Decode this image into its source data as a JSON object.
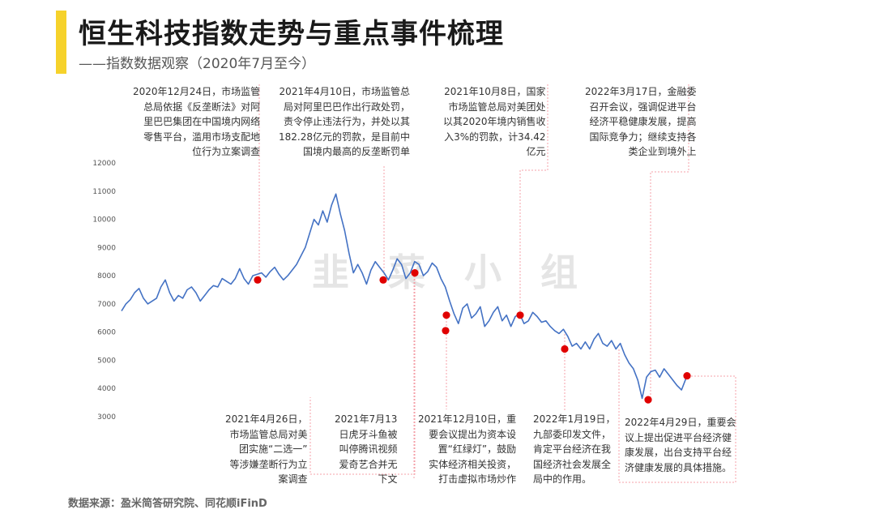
{
  "title": "恒生科技指数走势与重点事件梳理",
  "subtitle": "——指数数据观察（2020年7月至今）",
  "source": "数据来源：盈米简答研究院、同花顺iFinD",
  "watermark": "韭 菜 小 组",
  "colors": {
    "line": "#4472c4",
    "event": "#e00000",
    "guide": "#f4a0a8",
    "accent": "#f6d22b"
  },
  "chart_data": {
    "type": "line",
    "title": "恒生科技指数走势与重点事件梳理",
    "ylim": [
      3000,
      12000
    ],
    "yticks": [
      12000,
      11000,
      10000,
      9000,
      8000,
      7000,
      6000,
      5000,
      4000,
      3000
    ],
    "x_range": [
      "2020-07",
      "2022-06"
    ],
    "series": [
      {
        "values": [
          6750,
          7000,
          7150,
          7400,
          7550,
          7200,
          7000,
          7100,
          7200,
          7600,
          7850,
          7400,
          7100,
          7300,
          7200,
          7500,
          7600,
          7400,
          7100,
          7300,
          7500,
          7650,
          7600,
          7900,
          7800,
          7700,
          7900,
          8250,
          7900,
          7700,
          8000,
          8050,
          8100,
          7950,
          8150,
          8300,
          8050,
          7850,
          8000,
          8200,
          8400,
          8700,
          9000,
          9500,
          10000,
          9800,
          10300,
          9900,
          10500,
          10900,
          10200,
          9600,
          8800,
          8100,
          8400,
          8100,
          7700,
          8200,
          8500,
          8300,
          8100,
          7850,
          8200,
          8600,
          8400,
          7900,
          8100,
          8500,
          8400,
          8000,
          8150,
          8450,
          8300,
          7900,
          7600,
          7100,
          6650,
          6300,
          6850,
          7000,
          6500,
          6650,
          6900,
          6200,
          6400,
          6700,
          6900,
          6400,
          6600,
          6200,
          6550,
          6650,
          6300,
          6400,
          6700,
          6550,
          6350,
          6400,
          6200,
          6050,
          5950,
          6100,
          5850,
          5500,
          5600,
          5400,
          5650,
          5400,
          5750,
          5950,
          5600,
          5500,
          5700,
          5400,
          5600,
          5200,
          4900,
          4700,
          4300,
          3650,
          4400,
          4600,
          4650,
          4400,
          4700,
          4500,
          4300,
          4100,
          3950,
          4350,
          4450
        ]
      }
    ],
    "events": [
      {
        "date": "2020年12月24日",
        "value": 7850,
        "text": [
          "2020年12月24日，市场监管",
          "总局依据《反垄断法》对阿",
          "里巴巴集团在中国境内网络",
          "零售平台，滥用市场支配地",
          "位行为立案调查"
        ]
      },
      {
        "date": "2021年4月10日",
        "value": 7850,
        "text": [
          "2021年4月10日，市场监管总",
          "局对阿里巴巴作出行政处罚，",
          "责令停止违法行为，并处以其",
          "182.28亿元的罚款，是目前中",
          "国境内最高的反垄断罚单"
        ]
      },
      {
        "date": "2021年4月26日",
        "value": 8100,
        "text": [
          "2021年4月26日，",
          "市场监管总局对美",
          "团实施“二选一”",
          "等涉嫌垄断行为立",
          "案调查"
        ]
      },
      {
        "date": "2021年7月13日",
        "value": 6600,
        "text": [
          "2021年7月13",
          "日虎牙斗鱼被",
          "叫停腾讯视频",
          "爱奇艺合并无",
          "下文"
        ]
      },
      {
        "date": "2021年10月8日",
        "value": 6600,
        "text": [
          "2021年10月8日，国家",
          "市场监管总局对美团处",
          "以其2020年境内销售收",
          "入3%的罚款，计34.42",
          "亿元"
        ]
      },
      {
        "date": "2021年12月10日",
        "value": 6050,
        "text": [
          "2021年12月10日，重",
          "要会议提出为资本设",
          "置“红绿灯”，鼓励",
          "实体经济相关投资，",
          "打击虚拟市场炒作"
        ]
      },
      {
        "date": "2022年1月19日",
        "value": 5400,
        "text": [
          "2022年1月19日，",
          "九部委印发文件，",
          "肯定平台经济在我",
          "国经济社会发展全",
          "局中的作用。"
        ]
      },
      {
        "date": "2022年3月17日",
        "value": 3600,
        "text": [
          "2022年3月17日，金融委",
          "召开会议，强调促进平台",
          "经济平稳健康发展，提高",
          "国际竞争力；继续支持各",
          "类企业到境外上"
        ]
      },
      {
        "date": "2022年4月29日",
        "value": 4450,
        "text": [
          "2022年4月29日，重要会",
          "议上提出促进平台经济健",
          "康发展，出台支持平台经",
          "济健康发展的具体措施。"
        ]
      }
    ]
  }
}
